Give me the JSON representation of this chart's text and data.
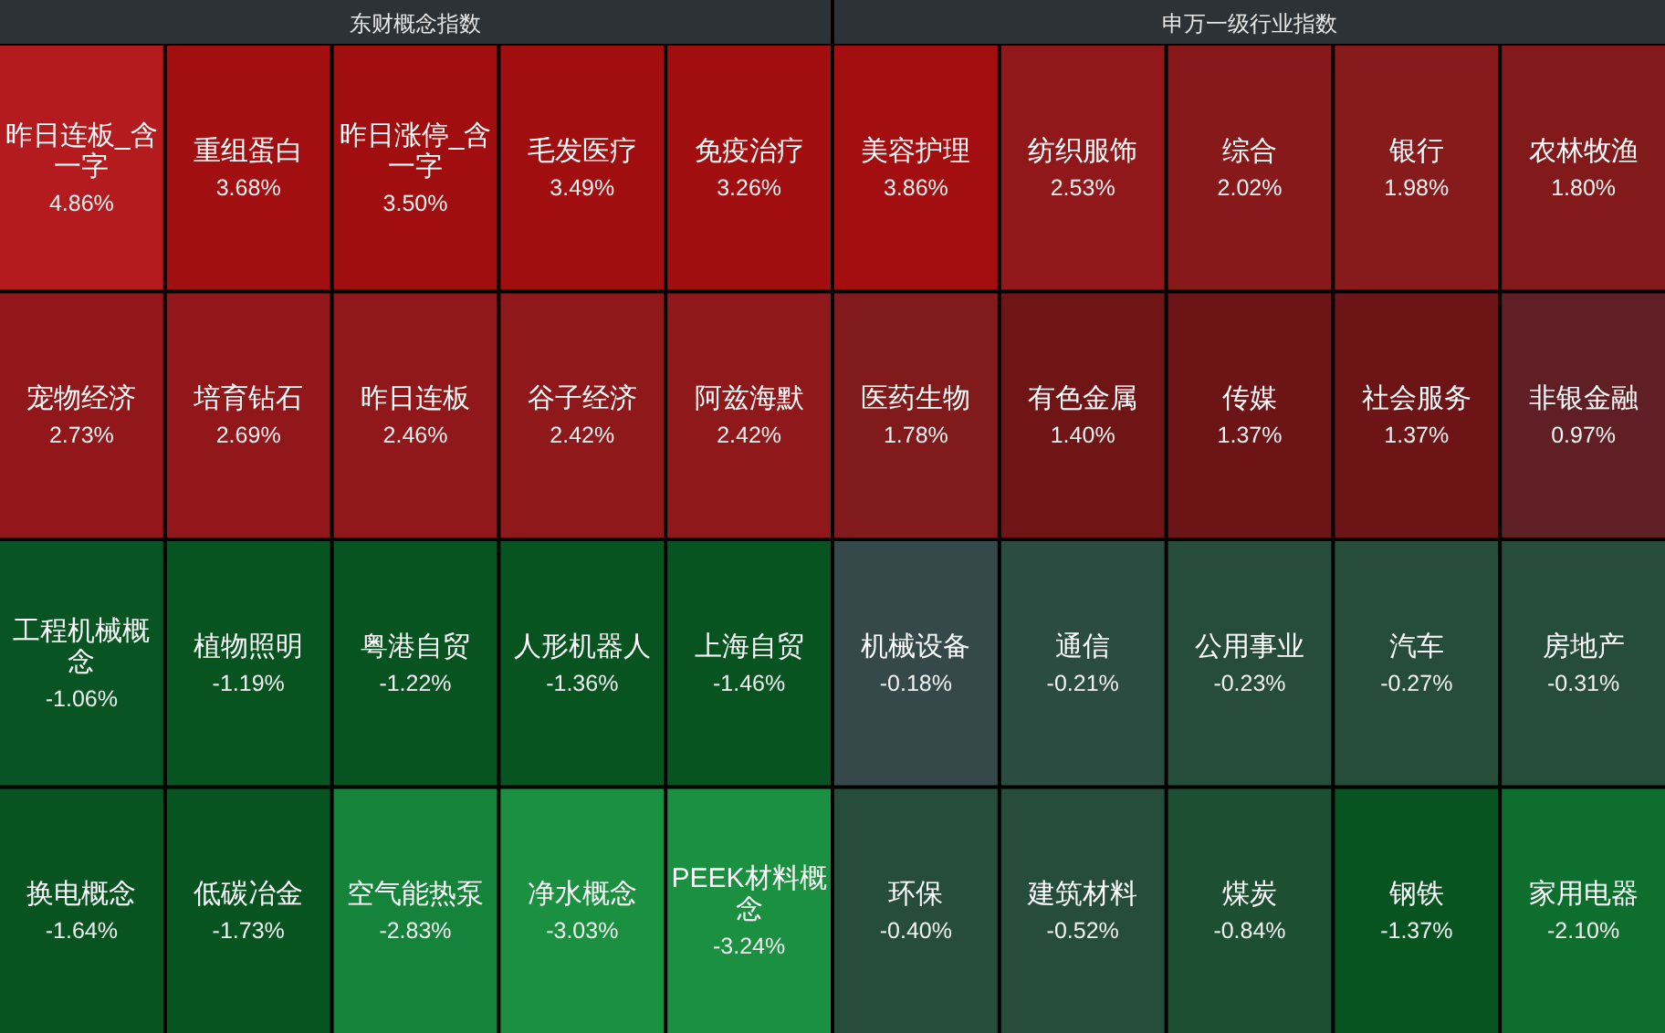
{
  "chart_data": [
    {
      "type": "other",
      "title": "东财概念指数",
      "categories": [
        "昨日连板_含一字",
        "重组蛋白",
        "昨日涨停_含一字",
        "毛发医疗",
        "免疫治疗",
        "宠物经济",
        "培育钻石",
        "昨日连板",
        "谷子经济",
        "阿兹海默",
        "工程机械概念",
        "植物照明",
        "粤港自贸",
        "人形机器人",
        "上海自贸",
        "换电概念",
        "低碳冶金",
        "空气能热泵",
        "净水概念",
        "PEEK材料概念"
      ],
      "values": [
        4.86,
        3.68,
        3.5,
        3.49,
        3.26,
        2.73,
        2.69,
        2.46,
        2.42,
        2.42,
        -1.06,
        -1.19,
        -1.22,
        -1.36,
        -1.46,
        -1.64,
        -1.73,
        -2.83,
        -3.03,
        -3.24
      ],
      "value_labels": [
        "4.86%",
        "3.68%",
        "3.50%",
        "3.49%",
        "3.26%",
        "2.73%",
        "2.69%",
        "2.46%",
        "2.42%",
        "2.42%",
        "-1.06%",
        "-1.19%",
        "-1.22%",
        "-1.36%",
        "-1.46%",
        "-1.64%",
        "-1.73%",
        "-2.83%",
        "-3.03%",
        "-3.24%"
      ]
    },
    {
      "type": "other",
      "title": "申万一级行业指数",
      "categories": [
        "美容护理",
        "纺织服饰",
        "综合",
        "银行",
        "农林牧渔",
        "医药生物",
        "有色金属",
        "传媒",
        "社会服务",
        "非银金融",
        "机械设备",
        "通信",
        "公用事业",
        "汽车",
        "房地产",
        "环保",
        "建筑材料",
        "煤炭",
        "钢铁",
        "家用电器"
      ],
      "values": [
        3.86,
        2.53,
        2.02,
        1.98,
        1.8,
        1.78,
        1.4,
        1.37,
        1.37,
        0.97,
        -0.18,
        -0.21,
        -0.23,
        -0.27,
        -0.31,
        -0.4,
        -0.52,
        -0.84,
        -1.37,
        -2.1
      ],
      "value_labels": [
        "3.86%",
        "2.53%",
        "2.02%",
        "1.98%",
        "1.80%",
        "1.78%",
        "1.40%",
        "1.37%",
        "1.37%",
        "0.97%",
        "-0.18%",
        "-0.21%",
        "-0.23%",
        "-0.27%",
        "-0.31%",
        "-0.40%",
        "-0.52%",
        "-0.84%",
        "-1.37%",
        "-2.10%"
      ]
    }
  ]
}
